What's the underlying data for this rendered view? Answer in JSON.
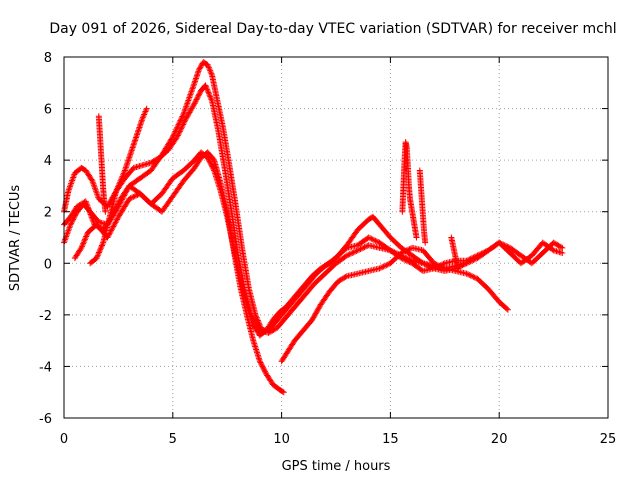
{
  "chart_data": {
    "type": "scatter",
    "title": "Day 091 of 2026, Sidereal Day-to-day VTEC variation (SDTVAR) for receiver mchl",
    "xlabel": "GPS time / hours",
    "ylabel": "SDTVAR / TECUs",
    "xlim": [
      0,
      25
    ],
    "ylim": [
      -6,
      8
    ],
    "grid": true,
    "marker": "plus",
    "color": "#ff0000",
    "x_ticks": [
      0,
      5,
      10,
      15,
      20,
      25
    ],
    "y_ticks": [
      -6,
      -4,
      -2,
      0,
      2,
      4,
      6,
      8
    ],
    "series": [
      {
        "name": "trace-1",
        "x": [
          0.0,
          0.2,
          0.5,
          0.8,
          1.0,
          1.3,
          1.6,
          2.0,
          2.4,
          2.8,
          3.2,
          3.6,
          4.0,
          4.4,
          4.8,
          5.2,
          5.6,
          6.0,
          6.3,
          6.5,
          6.8,
          7.1,
          7.4,
          7.7,
          8.0,
          8.3,
          8.6,
          9.0,
          9.4,
          9.8,
          10.2,
          10.6,
          11.0,
          11.5,
          12.0,
          12.5,
          13.0,
          13.5,
          14.0,
          14.5,
          15.0,
          15.5,
          16.0,
          16.5,
          17.0,
          17.5,
          18.0,
          18.5,
          19.0,
          19.5,
          20.0,
          20.5,
          21.0,
          21.5,
          22.0,
          22.5,
          22.9
        ],
        "y": [
          2.0,
          2.8,
          3.5,
          3.7,
          3.6,
          3.2,
          2.5,
          2.2,
          2.8,
          3.3,
          3.7,
          3.8,
          3.9,
          4.1,
          4.4,
          4.9,
          5.6,
          6.2,
          6.7,
          6.9,
          6.3,
          5.1,
          3.6,
          2.0,
          0.3,
          -1.0,
          -2.0,
          -2.6,
          -2.7,
          -2.5,
          -2.1,
          -1.7,
          -1.3,
          -0.8,
          -0.4,
          0.0,
          0.3,
          0.5,
          0.7,
          0.6,
          0.5,
          0.2,
          0.0,
          -0.3,
          -0.2,
          0.0,
          0.1,
          0.1,
          0.3,
          0.5,
          0.8,
          0.4,
          0.0,
          0.3,
          0.8,
          0.5,
          0.4
        ]
      },
      {
        "name": "trace-2",
        "x": [
          0.0,
          0.3,
          0.6,
          0.9,
          1.2,
          1.6,
          2.0,
          2.5,
          3.0,
          3.5,
          4.0,
          4.5,
          5.0,
          5.5,
          6.0,
          6.3,
          6.6,
          6.9,
          7.2,
          7.5,
          7.8,
          8.1,
          8.4,
          8.7,
          9.0,
          9.3,
          9.6,
          9.9,
          10.2,
          10.6,
          11.0,
          11.4,
          11.8,
          12.2,
          12.6,
          13.0,
          13.5,
          14.0,
          14.5,
          15.0,
          15.5,
          16.0,
          16.5,
          17.0,
          17.5,
          18.0,
          18.5,
          19.0,
          19.5,
          20.0,
          20.4
        ],
        "y": [
          0.8,
          1.5,
          2.0,
          2.3,
          2.0,
          1.6,
          1.5,
          2.2,
          3.0,
          2.7,
          2.3,
          2.7,
          3.3,
          3.6,
          4.0,
          4.3,
          4.1,
          3.6,
          2.8,
          1.8,
          0.6,
          -0.6,
          -1.6,
          -2.4,
          -2.8,
          -2.6,
          -2.2,
          -1.9,
          -1.7,
          -1.3,
          -0.9,
          -0.5,
          -0.2,
          0.0,
          0.3,
          0.6,
          0.7,
          1.0,
          0.8,
          0.5,
          0.3,
          0.1,
          0.0,
          -0.1,
          -0.2,
          -0.3,
          -0.4,
          -0.6,
          -1.0,
          -1.5,
          -1.8
        ]
      },
      {
        "name": "trace-3",
        "x": [
          0.0,
          0.3,
          0.6,
          1.0,
          1.4,
          1.8,
          2.2,
          2.6,
          3.0,
          3.5,
          4.0,
          4.5,
          5.0,
          5.5,
          6.0,
          6.2,
          6.4,
          6.6,
          6.8,
          7.0,
          7.3,
          7.6,
          7.9,
          8.2,
          8.5,
          8.8,
          9.1,
          9.4,
          9.7,
          10.0,
          10.4,
          10.8,
          11.2,
          11.6,
          12.0,
          12.5,
          13.0,
          13.5,
          14.0,
          14.2,
          14.5,
          15.0,
          15.5,
          16.0,
          16.5,
          17.0,
          17.5,
          18.0,
          18.5,
          19.0,
          19.5,
          20.0,
          20.5,
          21.0,
          21.5,
          22.0,
          22.5,
          22.9
        ],
        "y": [
          1.5,
          1.8,
          2.2,
          2.4,
          1.5,
          1.3,
          1.8,
          2.5,
          3.0,
          3.3,
          3.6,
          4.2,
          4.9,
          5.8,
          7.0,
          7.5,
          7.8,
          7.7,
          7.3,
          6.5,
          5.3,
          3.8,
          2.2,
          0.5,
          -1.0,
          -2.0,
          -2.6,
          -2.6,
          -2.3,
          -2.0,
          -1.6,
          -1.2,
          -0.8,
          -0.4,
          -0.1,
          0.2,
          0.7,
          1.3,
          1.7,
          1.8,
          1.5,
          1.0,
          0.6,
          0.3,
          0.0,
          -0.2,
          -0.3,
          -0.2,
          0.0,
          0.2,
          0.5,
          0.8,
          0.6,
          0.3,
          0.0,
          0.4,
          0.8,
          0.6
        ]
      },
      {
        "name": "trace-4",
        "x": [
          0.5,
          0.8,
          1.1,
          1.5,
          2.0,
          2.5,
          3.0,
          3.5,
          4.0,
          4.5,
          5.0,
          5.5,
          6.0,
          6.3,
          6.6,
          6.9,
          7.2,
          7.5,
          7.8,
          8.1,
          8.4,
          8.7,
          9.0,
          9.3,
          9.6,
          9.9,
          10.1
        ],
        "y": [
          0.2,
          0.6,
          1.2,
          1.5,
          1.0,
          1.8,
          2.5,
          2.7,
          2.3,
          2.0,
          2.6,
          3.2,
          3.7,
          4.1,
          4.3,
          4.0,
          3.1,
          2.0,
          0.5,
          -0.9,
          -2.0,
          -3.0,
          -3.8,
          -4.3,
          -4.7,
          -4.9,
          -5.0
        ]
      },
      {
        "name": "trace-5",
        "x": [
          1.2,
          1.5,
          1.8,
          2.1,
          2.4,
          2.8,
          3.2,
          3.6,
          3.8
        ],
        "y": [
          0.0,
          0.2,
          0.8,
          1.8,
          2.8,
          3.6,
          4.6,
          5.6,
          6.0
        ]
      },
      {
        "name": "trace-6",
        "x": [
          10.0,
          10.3,
          10.6,
          11.0,
          11.4,
          11.8,
          12.2,
          12.6,
          13.0,
          13.5,
          14.0,
          14.5,
          15.0,
          15.5,
          16.0,
          16.5,
          17.0,
          17.5,
          18.0,
          18.5
        ],
        "y": [
          -3.8,
          -3.4,
          -3.0,
          -2.6,
          -2.2,
          -1.6,
          -1.1,
          -0.7,
          -0.5,
          -0.4,
          -0.3,
          -0.2,
          0.0,
          0.4,
          0.6,
          0.5,
          0.0,
          -0.2,
          -0.1,
          0.0
        ]
      },
      {
        "name": "spike-1",
        "x": [
          1.6,
          1.65,
          1.7,
          1.75,
          1.8,
          1.85,
          1.9
        ],
        "y": [
          5.7,
          5.0,
          4.3,
          3.6,
          2.9,
          2.4,
          2.0
        ]
      },
      {
        "name": "spike-2",
        "x": [
          15.55,
          15.6,
          15.65,
          15.7,
          15.75,
          15.8,
          15.85,
          15.9,
          16.0,
          16.1,
          16.2
        ],
        "y": [
          2.0,
          3.0,
          4.0,
          4.7,
          4.5,
          3.8,
          3.0,
          2.5,
          2.0,
          1.5,
          1.0
        ]
      },
      {
        "name": "spike-3",
        "x": [
          16.35,
          16.4,
          16.45,
          16.5,
          16.55,
          16.6
        ],
        "y": [
          3.6,
          3.0,
          2.4,
          1.8,
          1.2,
          0.8
        ]
      },
      {
        "name": "spike-4",
        "x": [
          17.8,
          17.9,
          18.0,
          18.1
        ],
        "y": [
          1.0,
          0.6,
          0.2,
          -0.2
        ]
      }
    ]
  }
}
